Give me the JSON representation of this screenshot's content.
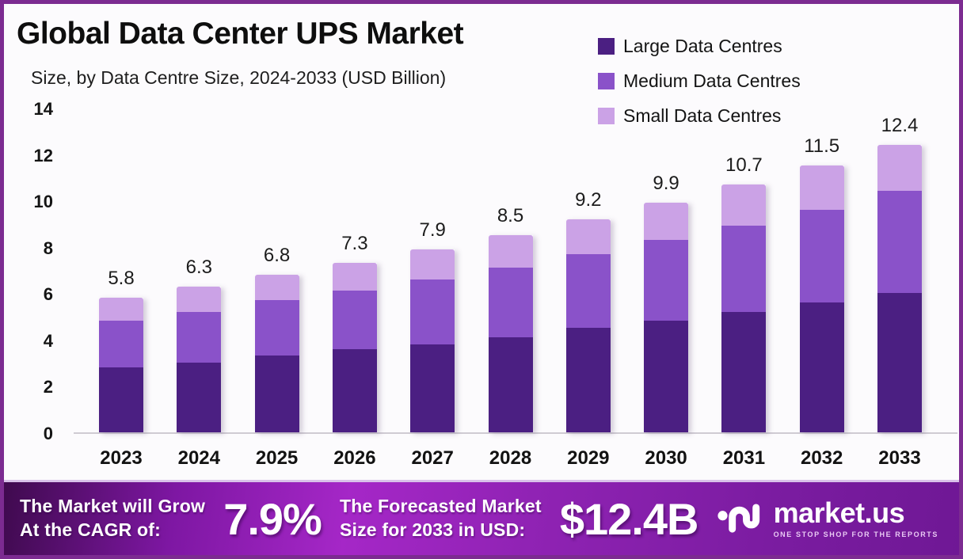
{
  "header": {
    "title": "Global Data Center UPS Market",
    "subtitle": "Size, by Data Centre Size, 2024-2033 (USD Billion)"
  },
  "legend": {
    "items": [
      {
        "label": "Large Data Centres",
        "color": "#4B1F82"
      },
      {
        "label": "Medium Data Centres",
        "color": "#8A52C9"
      },
      {
        "label": "Small Data Centres",
        "color": "#CBA2E6"
      }
    ]
  },
  "chart_data": {
    "type": "bar",
    "stacked": true,
    "title": "Global Data Center UPS Market Size, by Data Centre Size, 2024-2033 (USD Billion)",
    "categories": [
      "2023",
      "2024",
      "2025",
      "2026",
      "2027",
      "2028",
      "2029",
      "2030",
      "2031",
      "2032",
      "2033"
    ],
    "series": [
      {
        "name": "Large Data Centres",
        "color": "#4B1F82",
        "values": [
          2.8,
          3.0,
          3.3,
          3.6,
          3.8,
          4.1,
          4.5,
          4.8,
          5.2,
          5.6,
          6.0
        ]
      },
      {
        "name": "Medium Data Centres",
        "color": "#8A52C9",
        "values": [
          2.0,
          2.2,
          2.4,
          2.5,
          2.8,
          3.0,
          3.2,
          3.5,
          3.7,
          4.0,
          4.4
        ]
      },
      {
        "name": "Small Data Centres",
        "color": "#CBA2E6",
        "values": [
          1.0,
          1.1,
          1.1,
          1.2,
          1.3,
          1.4,
          1.5,
          1.6,
          1.8,
          1.9,
          2.0
        ]
      }
    ],
    "totals": [
      "5.8",
      "6.3",
      "6.8",
      "7.3",
      "7.9",
      "8.5",
      "9.2",
      "9.9",
      "10.7",
      "11.5",
      "12.4"
    ],
    "xlabel": "",
    "ylabel": "",
    "ylim": [
      0,
      14
    ],
    "yticks": [
      0,
      2,
      4,
      6,
      8,
      10,
      12,
      14
    ],
    "grid": false,
    "legend_position": "top-right"
  },
  "banner": {
    "cagr_label_line1": "The Market will Grow",
    "cagr_label_line2": "At the CAGR of:",
    "cagr_value": "7.9%",
    "forecast_label_line1": "The Forecasted Market",
    "forecast_label_line2": "Size for 2033 in USD:",
    "forecast_value": "$12.4B",
    "brand": "market.us",
    "brand_tagline": "ONE STOP SHOP FOR THE REPORTS"
  },
  "colors": {
    "frame_border": "#7C2B91",
    "background": "#FCFBFD",
    "axis_line": "#CFCBD3",
    "text": "#141414",
    "banner_gradient_start": "#3F0A4E",
    "banner_gradient_mid": "#A527C7",
    "banner_gradient_end": "#6F1895"
  }
}
